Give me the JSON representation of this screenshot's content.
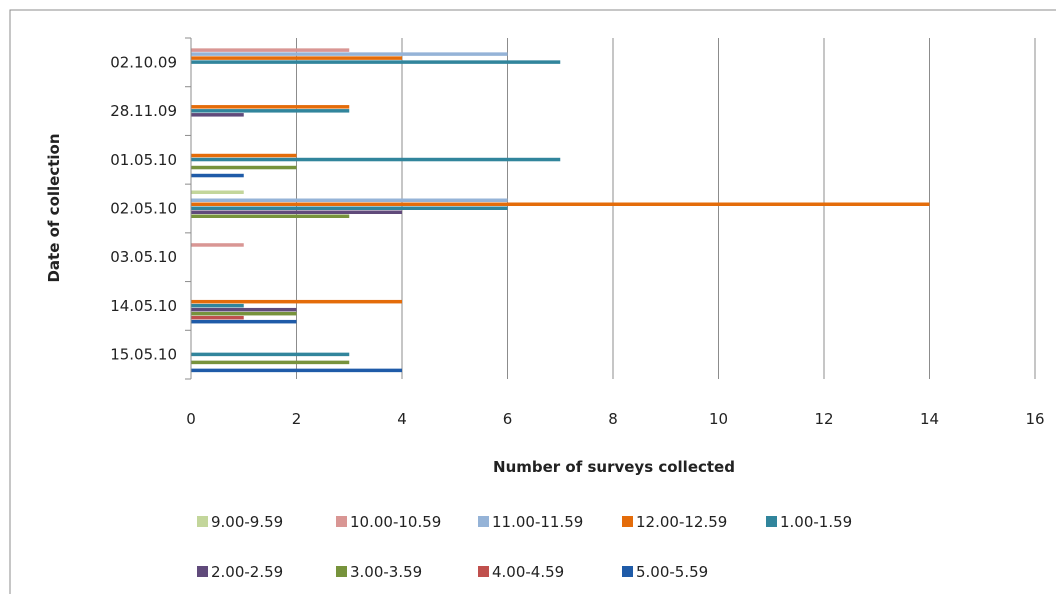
{
  "chart_data": {
    "type": "bar",
    "orientation": "horizontal",
    "title": "",
    "xlabel": "Number of surveys collected",
    "ylabel": "Date of collection",
    "xlim": [
      0,
      16
    ],
    "xticks": [
      0,
      2,
      4,
      6,
      8,
      10,
      12,
      14,
      16
    ],
    "grid": "vertical",
    "legend_position": "bottom",
    "categories": [
      "02.10.09",
      "28.11.09",
      "01.05.10",
      "02.05.10",
      "03.05.10",
      "14.05.10",
      "15.05.10"
    ],
    "series": [
      {
        "name": "9.00-9.59",
        "color": "#c3d69b",
        "values": [
          0,
          0,
          0,
          1,
          0,
          0,
          0
        ]
      },
      {
        "name": "10.00-10.59",
        "color": "#d99694",
        "values": [
          3,
          0,
          0,
          0,
          1,
          0,
          0
        ]
      },
      {
        "name": "11.00-11.59",
        "color": "#95b3d7",
        "values": [
          6,
          0,
          0,
          6,
          0,
          0,
          0
        ]
      },
      {
        "name": "12.00-12.59",
        "color": "#e46c0a",
        "values": [
          4,
          3,
          2,
          14,
          0,
          4,
          0
        ]
      },
      {
        "name": "1.00-1.59",
        "color": "#31859c",
        "values": [
          7,
          3,
          7,
          6,
          0,
          1,
          3
        ]
      },
      {
        "name": "2.00-2.59",
        "color": "#604a7b",
        "values": [
          0,
          1,
          0,
          4,
          0,
          2,
          0
        ]
      },
      {
        "name": "3.00-3.59",
        "color": "#77933c",
        "values": [
          0,
          0,
          2,
          3,
          0,
          2,
          3
        ]
      },
      {
        "name": "4.00-4.59",
        "color": "#c0504d",
        "values": [
          0,
          0,
          0,
          0,
          0,
          1,
          0
        ]
      },
      {
        "name": "5.00-5.59",
        "color": "#1f5ba8",
        "values": [
          0,
          0,
          1,
          0,
          0,
          2,
          4
        ]
      }
    ]
  }
}
